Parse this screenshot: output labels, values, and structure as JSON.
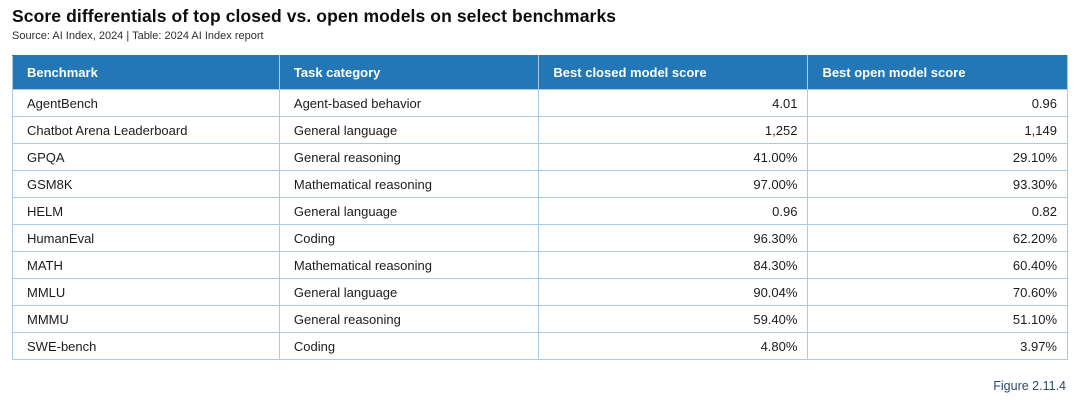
{
  "title": "Score differentials of top closed vs. open models on select benchmarks",
  "subtitle": "Source: AI Index, 2024 | Table: 2024 AI Index report",
  "figure_label": "Figure 2.11.4",
  "colors": {
    "header_bg": "#2377b6",
    "header_text": "#ffffff",
    "cell_border": "#a9cbe4",
    "figure_label_text": "#2b4a6b"
  },
  "chart_data": {
    "type": "table",
    "title": "Score differentials of top closed vs. open models on select benchmarks",
    "columns": [
      "Benchmark",
      "Task category",
      "Best closed model score",
      "Best open model score"
    ],
    "rows": [
      [
        "AgentBench",
        "Agent-based behavior",
        "4.01",
        "0.96"
      ],
      [
        "Chatbot Arena Leaderboard",
        "General language",
        "1,252",
        "1,149"
      ],
      [
        "GPQA",
        "General reasoning",
        "41.00%",
        "29.10%"
      ],
      [
        "GSM8K",
        "Mathematical reasoning",
        "97.00%",
        "93.30%"
      ],
      [
        "HELM",
        "General language",
        "0.96",
        "0.82"
      ],
      [
        "HumanEval",
        "Coding",
        "96.30%",
        "62.20%"
      ],
      [
        "MATH",
        "Mathematical reasoning",
        "84.30%",
        "60.40%"
      ],
      [
        "MMLU",
        "General language",
        "90.04%",
        "70.60%"
      ],
      [
        "MMMU",
        "General reasoning",
        "59.40%",
        "51.10%"
      ],
      [
        "SWE-bench",
        "Coding",
        "4.80%",
        "3.97%"
      ]
    ]
  }
}
